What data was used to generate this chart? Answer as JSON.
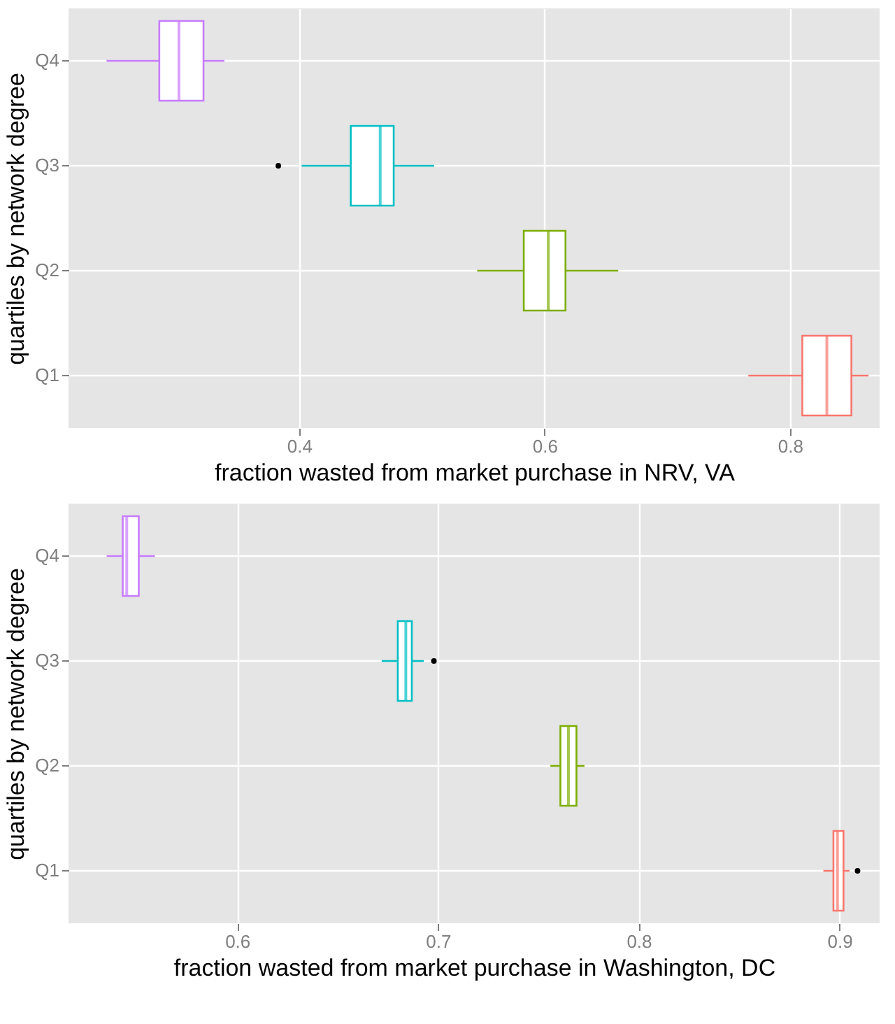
{
  "chart_data": [
    {
      "type": "box",
      "orientation": "horizontal",
      "xlabel": "fraction wasted from market purchase in NRV, VA",
      "ylabel": "quartiles by network degree",
      "categories": [
        "Q4",
        "Q3",
        "Q2",
        "Q1"
      ],
      "colors": [
        "#c77cff",
        "#00bfc4",
        "#7cae00",
        "#f8766d"
      ],
      "boxes": [
        {
          "low": 0.243,
          "q1": 0.286,
          "median": 0.302,
          "q3": 0.322,
          "high": 0.339
        },
        {
          "low": 0.402,
          "q1": 0.442,
          "median": 0.466,
          "q3": 0.477,
          "high": 0.51,
          "outliers": [
            0.383
          ]
        },
        {
          "low": 0.545,
          "q1": 0.583,
          "median": 0.603,
          "q3": 0.617,
          "high": 0.66
        },
        {
          "low": 0.766,
          "q1": 0.81,
          "median": 0.83,
          "q3": 0.85,
          "high": 0.864
        }
      ],
      "xlim": [
        0.212,
        0.873
      ],
      "xticks": [
        0.4,
        0.6,
        0.8
      ],
      "grid": true,
      "legend": false
    },
    {
      "type": "box",
      "orientation": "horizontal",
      "xlabel": "fraction wasted from market purchase in Washington, DC",
      "ylabel": "quartiles by network degree",
      "categories": [
        "Q4",
        "Q3",
        "Q2",
        "Q1"
      ],
      "colors": [
        "#c77cff",
        "#00bfc4",
        "#7cae00",
        "#f8766d"
      ],
      "boxes": [
        {
          "low": 0.535,
          "q1": 0.543,
          "median": 0.545,
          "q3": 0.551,
          "high": 0.559
        },
        {
          "low": 0.672,
          "q1": 0.68,
          "median": 0.684,
          "q3": 0.687,
          "high": 0.693,
          "outliers": [
            0.698
          ]
        },
        {
          "low": 0.756,
          "q1": 0.761,
          "median": 0.765,
          "q3": 0.769,
          "high": 0.773
        },
        {
          "low": 0.892,
          "q1": 0.897,
          "median": 0.899,
          "q3": 0.902,
          "high": 0.905,
          "outliers": [
            0.909
          ]
        }
      ],
      "xlim": [
        0.516,
        0.92
      ],
      "xticks": [
        0.6,
        0.7,
        0.8,
        0.9
      ],
      "grid": true,
      "legend": false
    }
  ]
}
